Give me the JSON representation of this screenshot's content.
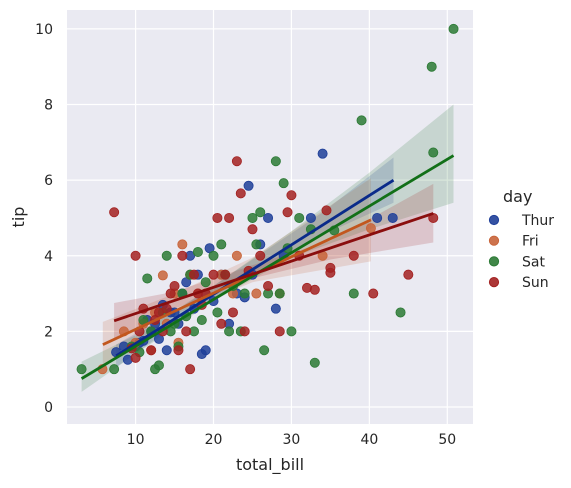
{
  "chart_data": {
    "type": "scatter",
    "xlabel": "total_bill",
    "ylabel": "tip",
    "xlim": [
      1.2,
      53.3
    ],
    "ylim": [
      -0.45,
      10.5
    ],
    "xticks": [
      10,
      20,
      30,
      40,
      50
    ],
    "yticks": [
      0,
      2,
      4,
      6,
      8,
      10
    ],
    "grid": true,
    "legend": {
      "title": "day",
      "placement": "right"
    },
    "series": [
      {
        "name": "Thur",
        "color": "#1f3f99",
        "band_color": "#1f3f99",
        "line_color": "#0a2a8a",
        "fit": {
          "x": [
            7.5,
            43.1
          ],
          "y": [
            1.35,
            6.0
          ]
        },
        "band": {
          "x": [
            7.5,
            16.0,
            25.0,
            34.0,
            43.1
          ],
          "lower": [
            1.05,
            2.3,
            3.5,
            4.55,
            5.4
          ],
          "upper": [
            1.65,
            2.65,
            3.9,
            5.15,
            6.6
          ]
        },
        "points": [
          [
            7.5,
            1.45
          ],
          [
            8.5,
            1.6
          ],
          [
            9.0,
            1.25
          ],
          [
            10.0,
            1.6
          ],
          [
            10.5,
            1.7
          ],
          [
            11.0,
            1.75
          ],
          [
            11.5,
            2.3
          ],
          [
            12.0,
            2.0
          ],
          [
            12.5,
            2.2
          ],
          [
            13.0,
            1.8
          ],
          [
            13.5,
            2.7
          ],
          [
            14.0,
            1.5
          ],
          [
            14.5,
            2.5
          ],
          [
            15.0,
            2.5
          ],
          [
            15.5,
            2.2
          ],
          [
            16.0,
            3.0
          ],
          [
            16.5,
            3.3
          ],
          [
            17.0,
            4.0
          ],
          [
            17.5,
            2.6
          ],
          [
            18.0,
            3.5
          ],
          [
            18.5,
            1.4
          ],
          [
            19.0,
            1.5
          ],
          [
            19.5,
            4.2
          ],
          [
            20.0,
            2.8
          ],
          [
            21.0,
            3.5
          ],
          [
            22.0,
            2.2
          ],
          [
            23.0,
            3.0
          ],
          [
            24.0,
            2.9
          ],
          [
            24.5,
            5.85
          ],
          [
            25.0,
            3.5
          ],
          [
            26.0,
            4.3
          ],
          [
            27.0,
            5.0
          ],
          [
            28.0,
            2.6
          ],
          [
            29.0,
            4.0
          ],
          [
            32.5,
            5.0
          ],
          [
            34.0,
            6.7
          ],
          [
            41.0,
            5.0
          ],
          [
            43.0,
            5.0
          ]
        ]
      },
      {
        "name": "Fri",
        "color": "#c8643a",
        "band_color": "#c8643a",
        "line_color": "#c2571e",
        "fit": {
          "x": [
            5.8,
            40.2
          ],
          "y": [
            1.65,
            4.95
          ]
        },
        "band": {
          "x": [
            5.8,
            15.0,
            25.0,
            40.2
          ],
          "lower": [
            1.05,
            2.45,
            3.3,
            3.85
          ],
          "upper": [
            2.25,
            3.0,
            3.95,
            6.05
          ]
        },
        "points": [
          [
            5.75,
            1.0
          ],
          [
            8.5,
            2.0
          ],
          [
            10.0,
            1.7
          ],
          [
            11.0,
            2.2
          ],
          [
            12.0,
            1.5
          ],
          [
            12.5,
            2.5
          ],
          [
            13.5,
            3.48
          ],
          [
            14.0,
            2.2
          ],
          [
            15.0,
            3.0
          ],
          [
            15.5,
            1.7
          ],
          [
            16.0,
            4.3
          ],
          [
            17.0,
            3.5
          ],
          [
            18.0,
            3.0
          ],
          [
            21.0,
            3.5
          ],
          [
            22.5,
            3.0
          ],
          [
            23.0,
            4.0
          ],
          [
            25.5,
            3.0
          ],
          [
            28.5,
            3.0
          ],
          [
            34.0,
            4.0
          ],
          [
            40.2,
            4.73
          ]
        ]
      },
      {
        "name": "Sat",
        "color": "#2c7a35",
        "band_color": "#2c7a35",
        "line_color": "#127018",
        "fit": {
          "x": [
            3.07,
            50.8
          ],
          "y": [
            0.75,
            6.65
          ]
        },
        "band": {
          "x": [
            3.07,
            10.0,
            20.0,
            30.0,
            40.0,
            50.8
          ],
          "lower": [
            0.4,
            1.4,
            2.8,
            3.95,
            4.7,
            5.4
          ],
          "upper": [
            1.2,
            1.9,
            3.2,
            4.65,
            6.2,
            8.0
          ]
        },
        "points": [
          [
            3.07,
            1.0
          ],
          [
            7.25,
            1.0
          ],
          [
            9.5,
            1.6
          ],
          [
            10.5,
            1.45
          ],
          [
            11.0,
            2.3
          ],
          [
            11.5,
            3.4
          ],
          [
            12.0,
            2.0
          ],
          [
            12.5,
            1.0
          ],
          [
            13.0,
            1.1
          ],
          [
            13.5,
            2.5
          ],
          [
            14.0,
            4.0
          ],
          [
            14.5,
            2.0
          ],
          [
            15.0,
            2.2
          ],
          [
            15.5,
            1.6
          ],
          [
            16.0,
            3.0
          ],
          [
            16.5,
            2.4
          ],
          [
            17.0,
            3.5
          ],
          [
            17.5,
            2.0
          ],
          [
            18.0,
            4.1
          ],
          [
            18.5,
            2.3
          ],
          [
            19.0,
            3.3
          ],
          [
            20.0,
            4.0
          ],
          [
            20.5,
            2.5
          ],
          [
            21.0,
            4.3
          ],
          [
            21.5,
            3.5
          ],
          [
            22.0,
            2.0
          ],
          [
            22.5,
            3.2
          ],
          [
            23.5,
            2.0
          ],
          [
            24.0,
            3.0
          ],
          [
            25.0,
            5.0
          ],
          [
            25.5,
            4.3
          ],
          [
            26.0,
            5.15
          ],
          [
            26.5,
            1.5
          ],
          [
            27.0,
            3.0
          ],
          [
            28.0,
            6.5
          ],
          [
            28.5,
            3.0
          ],
          [
            29.0,
            5.92
          ],
          [
            29.5,
            4.2
          ],
          [
            30.0,
            2.0
          ],
          [
            31.0,
            5.0
          ],
          [
            32.5,
            4.7
          ],
          [
            33.0,
            1.17
          ],
          [
            35.5,
            4.67
          ],
          [
            38.0,
            3.0
          ],
          [
            39.0,
            7.58
          ],
          [
            44.0,
            2.5
          ],
          [
            48.0,
            9.0
          ],
          [
            48.2,
            6.73
          ],
          [
            50.8,
            10.0
          ]
        ]
      },
      {
        "name": "Sun",
        "color": "#a32121",
        "band_color": "#a32121",
        "line_color": "#8a0e0e",
        "fit": {
          "x": [
            7.25,
            48.2
          ],
          "y": [
            2.28,
            5.12
          ]
        },
        "band": {
          "x": [
            7.25,
            15.0,
            25.0,
            35.0,
            48.2
          ],
          "lower": [
            1.8,
            2.6,
            3.4,
            3.9,
            4.35
          ],
          "upper": [
            2.75,
            3.05,
            3.75,
            4.4,
            5.9
          ]
        },
        "points": [
          [
            7.25,
            5.15
          ],
          [
            9.5,
            1.55
          ],
          [
            10.0,
            1.3
          ],
          [
            10.5,
            2.0
          ],
          [
            10.0,
            4.0
          ],
          [
            11.0,
            2.6
          ],
          [
            12.0,
            1.5
          ],
          [
            12.5,
            2.3
          ],
          [
            13.0,
            2.5
          ],
          [
            13.5,
            2.0
          ],
          [
            14.0,
            2.6
          ],
          [
            14.5,
            3.0
          ],
          [
            15.0,
            3.2
          ],
          [
            15.5,
            1.5
          ],
          [
            16.0,
            4.0
          ],
          [
            16.5,
            2.0
          ],
          [
            17.0,
            1.0
          ],
          [
            17.5,
            3.5
          ],
          [
            18.0,
            3.0
          ],
          [
            18.5,
            2.7
          ],
          [
            19.0,
            3.0
          ],
          [
            20.0,
            3.5
          ],
          [
            20.5,
            5.0
          ],
          [
            21.0,
            2.2
          ],
          [
            21.5,
            3.5
          ],
          [
            22.0,
            5.0
          ],
          [
            22.5,
            2.5
          ],
          [
            23.0,
            6.5
          ],
          [
            23.5,
            5.65
          ],
          [
            24.0,
            2.0
          ],
          [
            24.5,
            3.6
          ],
          [
            25.0,
            4.7
          ],
          [
            26.0,
            4.0
          ],
          [
            27.0,
            3.2
          ],
          [
            28.5,
            2.0
          ],
          [
            29.5,
            5.15
          ],
          [
            30.0,
            5.6
          ],
          [
            31.0,
            4.0
          ],
          [
            32.0,
            3.15
          ],
          [
            33.0,
            3.1
          ],
          [
            34.5,
            5.2
          ],
          [
            35.0,
            3.55
          ],
          [
            35.0,
            3.68
          ],
          [
            38.0,
            4.0
          ],
          [
            40.5,
            3.0
          ],
          [
            45.0,
            3.5
          ],
          [
            48.2,
            5.0
          ]
        ]
      }
    ]
  }
}
